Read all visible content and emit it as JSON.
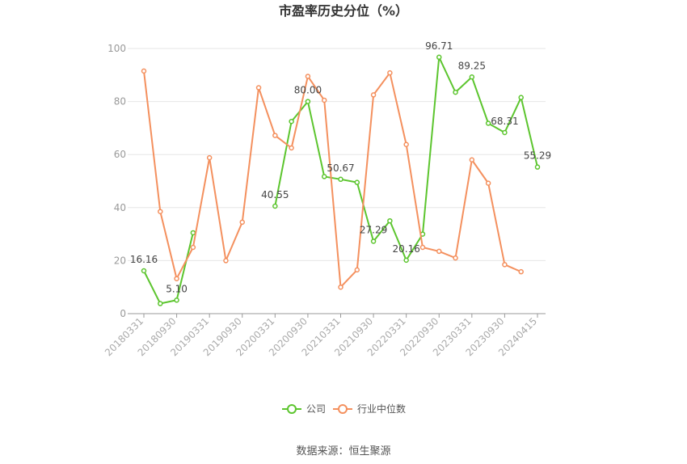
{
  "chart_data": {
    "type": "line",
    "title": "市盈率历史分位（%）",
    "ylim": [
      0,
      100
    ],
    "yticks": [
      0,
      20,
      40,
      60,
      80,
      100
    ],
    "grid": true,
    "legend_position": "bottom",
    "x_tick_labels": [
      "20180331",
      "20180930",
      "20190331",
      "20190930",
      "20200331",
      "20200930",
      "20210331",
      "20210930",
      "20220331",
      "20220930",
      "20230331",
      "20230930",
      "20240415"
    ],
    "x": [
      "20180331",
      "20180630",
      "20180930",
      "20181231",
      "20190331",
      "20190630",
      "20190930",
      "20191231",
      "20200331",
      "20200630",
      "20200930",
      "20201231",
      "20210331",
      "20210630",
      "20210930",
      "20211231",
      "20220331",
      "20220630",
      "20220930",
      "20221231",
      "20230331",
      "20230630",
      "20230930",
      "20231231",
      "20240415"
    ],
    "series": [
      {
        "name": "公司",
        "color": "#5cc52e",
        "values": [
          16.16,
          3.8,
          5.1,
          30.5,
          null,
          null,
          null,
          null,
          40.55,
          72.5,
          80.0,
          51.7,
          50.67,
          49.5,
          27.29,
          35.0,
          20.16,
          30.0,
          96.71,
          83.5,
          89.25,
          71.8,
          68.31,
          81.5,
          55.29
        ]
      },
      {
        "name": "行业中位数",
        "color": "#f4905e",
        "values": [
          91.5,
          38.5,
          13.2,
          25.0,
          58.8,
          20.0,
          34.5,
          85.2,
          67.2,
          62.5,
          89.5,
          80.5,
          10.0,
          16.5,
          82.5,
          90.8,
          63.8,
          25.0,
          23.5,
          21.0,
          58.0,
          49.2,
          18.5,
          15.8,
          null
        ]
      }
    ],
    "data_labels": [
      {
        "index": 0,
        "text": "16.16"
      },
      {
        "index": 2,
        "text": "5.10"
      },
      {
        "index": 8,
        "text": "40.55"
      },
      {
        "index": 10,
        "text": "80.00"
      },
      {
        "index": 12,
        "text": "50.67"
      },
      {
        "index": 14,
        "text": "27.29"
      },
      {
        "index": 16,
        "text": "20.16"
      },
      {
        "index": 18,
        "text": "96.71"
      },
      {
        "index": 20,
        "text": "89.25"
      },
      {
        "index": 22,
        "text": "68.31"
      },
      {
        "index": 24,
        "text": "55.29"
      }
    ]
  },
  "legend": {
    "company": "公司",
    "industry": "行业中位数"
  },
  "source": "数据来源：恒生聚源"
}
